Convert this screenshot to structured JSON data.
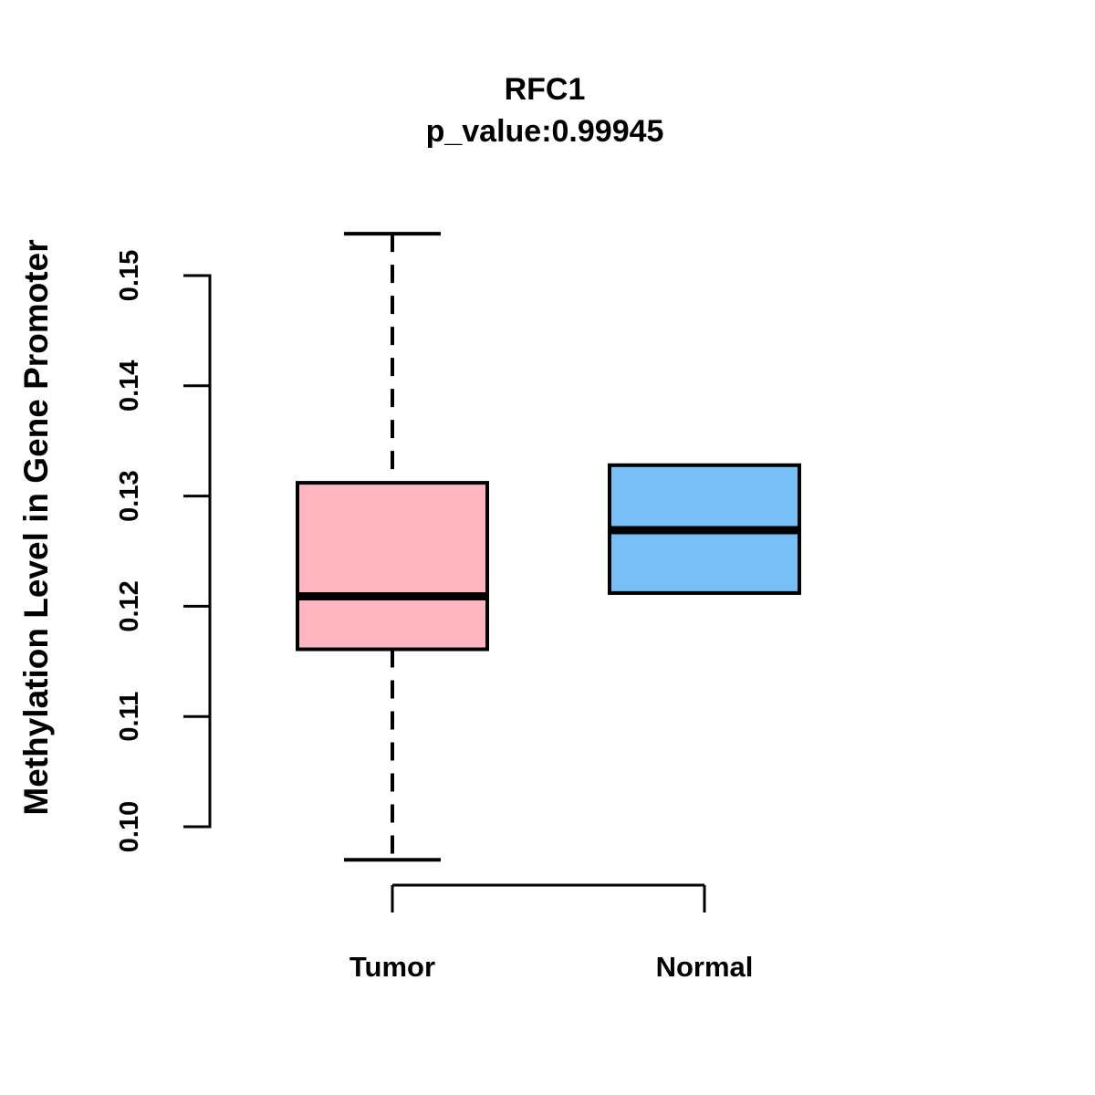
{
  "chart_data": {
    "type": "boxplot",
    "title": "RFC1",
    "subtitle": "p_value:0.99945",
    "ylabel": "Methylation Level in Gene Promoter",
    "xlabel": "",
    "categories": [
      "Tumor",
      "Normal"
    ],
    "y_ticks": [
      0.1,
      0.11,
      0.12,
      0.13,
      0.14,
      0.15
    ],
    "ylim": [
      0.097,
      0.154
    ],
    "grid": false,
    "legend": "none",
    "line_color": "#000000",
    "series": [
      {
        "name": "Tumor",
        "color": "#FFB6C1",
        "lower_whisker": 0.097,
        "q1": 0.1161,
        "median": 0.1209,
        "q3": 0.1312,
        "upper_whisker": 0.1538,
        "whisker_style": "dashed"
      },
      {
        "name": "Normal",
        "color": "#77BFF4",
        "lower_whisker": 0.1212,
        "q1": 0.1212,
        "median": 0.1269,
        "q3": 0.1328,
        "upper_whisker": 0.1328,
        "whisker_style": "dashed"
      }
    ]
  }
}
